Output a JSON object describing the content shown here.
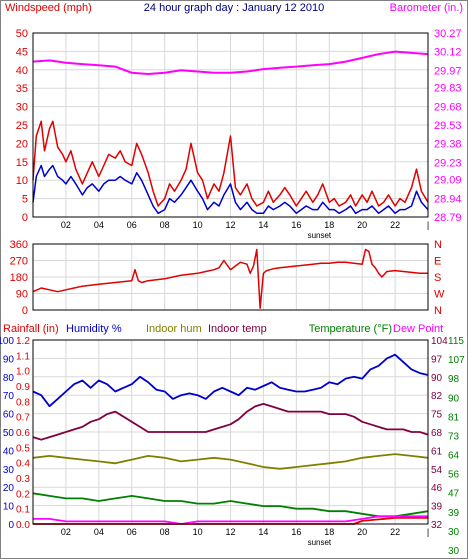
{
  "title": "24 hour graph day : January 12 2010",
  "colors": {
    "background": "#ffffff",
    "grid": "#d8d8d8",
    "text": "#000000",
    "wind_gust": "#e00000",
    "wind_avg": "#0000cc",
    "barometer": "#ff00ff",
    "direction": "#e00000",
    "rainfall": "#e00000",
    "humidity": "#0000cc",
    "indoor_hum": "#808000",
    "indoor_temp": "#800040",
    "temperature": "#008000",
    "dew_point": "#ff00ff",
    "title": "#000080"
  },
  "chart_data": [
    {
      "type": "line",
      "name": "wind-barometer",
      "left_label": "Windspeed (mph)",
      "right_label": "Barometer (in.)",
      "x_ticks": [
        "02",
        "04",
        "06",
        "08",
        "10",
        "12",
        "14",
        "16",
        "18",
        "20",
        "22"
      ],
      "x_end_tick": "|",
      "x_note": "sunset",
      "y_left_ticks": [
        "0",
        "5",
        "10",
        "15",
        "20",
        "25",
        "30",
        "35",
        "40",
        "45",
        "50"
      ],
      "y_left_range": [
        0,
        50
      ],
      "y_right_ticks": [
        "28.79",
        "28.94",
        "29.09",
        "29.23",
        "29.38",
        "29.53",
        "29.68",
        "29.83",
        "29.97",
        "30.12",
        "30.27"
      ],
      "y_right_range": [
        28.79,
        30.27
      ],
      "x_range": [
        0,
        24
      ],
      "series": [
        {
          "key": "barometer",
          "axis": "right",
          "color_key": "barometer",
          "x": [
            0,
            1,
            2,
            3,
            4,
            5,
            6,
            7,
            8,
            9,
            10,
            11,
            12,
            13,
            14,
            15,
            16,
            17,
            18,
            19,
            20,
            21,
            22,
            23,
            24
          ],
          "y": [
            30.04,
            30.05,
            30.03,
            30.02,
            30.01,
            30.0,
            29.95,
            29.94,
            29.95,
            29.97,
            29.96,
            29.95,
            29.95,
            29.96,
            29.98,
            29.99,
            30.0,
            30.01,
            30.02,
            30.04,
            30.07,
            30.1,
            30.12,
            30.11,
            30.1
          ]
        },
        {
          "key": "gust",
          "axis": "left",
          "color_key": "wind_gust",
          "x": [
            0,
            0.2,
            0.5,
            0.7,
            1,
            1.2,
            1.5,
            1.8,
            2,
            2.3,
            2.6,
            3,
            3.3,
            3.6,
            4,
            4.3,
            4.6,
            5,
            5.3,
            5.6,
            6,
            6.3,
            6.6,
            7,
            7.3,
            7.6,
            8,
            8.3,
            8.6,
            9,
            9.3,
            9.6,
            10,
            10.3,
            10.6,
            11,
            11.3,
            11.6,
            12,
            12.3,
            12.6,
            13,
            13.3,
            13.6,
            14,
            14.3,
            14.6,
            15,
            15.3,
            15.6,
            16,
            16.3,
            16.6,
            17,
            17.3,
            17.6,
            18,
            18.3,
            18.6,
            19,
            19.3,
            19.6,
            20,
            20.3,
            20.6,
            21,
            21.3,
            21.6,
            22,
            22.3,
            22.6,
            23,
            23.3,
            23.6,
            24
          ],
          "y": [
            10,
            22,
            26,
            18,
            24,
            26,
            19,
            17,
            15,
            18,
            13,
            9,
            12,
            15,
            11,
            14,
            17,
            16,
            18,
            15,
            14,
            20,
            17,
            12,
            7,
            3,
            5,
            9,
            7,
            10,
            13,
            20,
            12,
            10,
            5,
            9,
            7,
            12,
            22,
            8,
            6,
            9,
            5,
            3,
            4,
            7,
            4,
            6,
            8,
            6,
            3,
            5,
            7,
            4,
            6,
            9,
            4,
            5,
            3,
            4,
            6,
            3,
            6,
            4,
            7,
            3,
            4,
            6,
            3,
            5,
            4,
            8,
            13,
            7,
            4
          ]
        },
        {
          "key": "avg",
          "axis": "left",
          "color_key": "wind_avg",
          "x": [
            0,
            0.2,
            0.5,
            0.7,
            1,
            1.2,
            1.5,
            1.8,
            2,
            2.3,
            2.6,
            3,
            3.3,
            3.6,
            4,
            4.3,
            4.6,
            5,
            5.3,
            5.6,
            6,
            6.3,
            6.6,
            7,
            7.3,
            7.6,
            8,
            8.3,
            8.6,
            9,
            9.3,
            9.6,
            10,
            10.3,
            10.6,
            11,
            11.3,
            11.6,
            12,
            12.3,
            12.6,
            13,
            13.3,
            13.6,
            14,
            14.3,
            14.6,
            15,
            15.3,
            15.6,
            16,
            16.3,
            16.6,
            17,
            17.3,
            17.6,
            18,
            18.3,
            18.6,
            19,
            19.3,
            19.6,
            20,
            20.3,
            20.6,
            21,
            21.3,
            21.6,
            22,
            22.3,
            22.6,
            23,
            23.3,
            23.6,
            24
          ],
          "y": [
            4,
            11,
            14,
            11,
            13,
            14,
            11,
            10,
            9,
            11,
            9,
            6,
            8,
            9,
            7,
            9,
            10,
            10,
            11,
            10,
            9,
            12,
            10,
            6,
            3,
            1,
            2,
            5,
            4,
            6,
            8,
            10,
            7,
            5,
            2,
            4,
            3,
            6,
            9,
            4,
            2,
            4,
            2,
            1,
            1,
            3,
            2,
            3,
            4,
            3,
            1,
            2,
            3,
            2,
            2,
            4,
            2,
            2,
            1,
            2,
            3,
            1,
            2,
            2,
            3,
            1,
            2,
            3,
            1,
            2,
            2,
            3,
            7,
            4,
            2
          ]
        }
      ]
    },
    {
      "type": "line",
      "name": "wind-direction",
      "y_left_ticks": [
        "0",
        "90",
        "180",
        "270",
        "360"
      ],
      "y_left_range": [
        0,
        360
      ],
      "y_right_ticks": [
        "N",
        "W",
        "S",
        "E",
        "N"
      ],
      "x_range": [
        0,
        24
      ],
      "series": [
        {
          "key": "direction",
          "axis": "left",
          "color_key": "direction",
          "x": [
            0,
            0.5,
            1,
            1.5,
            2,
            2.5,
            3,
            3.5,
            4,
            4.5,
            5,
            5.5,
            6,
            6.2,
            6.4,
            6.6,
            6.8,
            7,
            7.5,
            8,
            8.5,
            9,
            9.5,
            10,
            10.5,
            11,
            11.3,
            11.6,
            12,
            12.3,
            12.6,
            13,
            13.2,
            13.4,
            13.6,
            13.8,
            14,
            14.2,
            14.4,
            14.6,
            15,
            15.5,
            16,
            16.5,
            17,
            17.5,
            18,
            18.5,
            19,
            19.5,
            20,
            20.2,
            20.4,
            20.6,
            20.8,
            21,
            21.2,
            21.5,
            22,
            22.5,
            23,
            23.5,
            24
          ],
          "y": [
            100,
            120,
            110,
            100,
            110,
            120,
            130,
            135,
            140,
            145,
            150,
            155,
            160,
            220,
            160,
            150,
            155,
            160,
            165,
            170,
            180,
            190,
            195,
            200,
            210,
            220,
            230,
            270,
            220,
            240,
            260,
            250,
            200,
            240,
            330,
            10,
            200,
            215,
            220,
            225,
            230,
            235,
            240,
            245,
            250,
            255,
            255,
            260,
            260,
            255,
            250,
            330,
            320,
            250,
            230,
            200,
            180,
            210,
            215,
            210,
            205,
            200,
            200
          ]
        }
      ]
    },
    {
      "type": "line",
      "name": "rain-humidity-temperature",
      "left_labels": [
        "Rainfall (in)",
        "Humidity %",
        "Indoor hum",
        "Indoor temp"
      ],
      "right_labels": [
        "Temperature (°F)",
        "Dew Point"
      ],
      "x_ticks": [
        "02",
        "04",
        "06",
        "08",
        "10",
        "12",
        "14",
        "16",
        "18",
        "20",
        "22"
      ],
      "x_end_tick": "|",
      "x_note": "sunset",
      "y_rain_ticks": [
        "0.0",
        "0.1",
        "0.2",
        "0.3",
        "0.4",
        "0.5",
        "0.6",
        "0.7",
        "0.8",
        "0.9",
        "1.0",
        "1.1",
        "1.2"
      ],
      "y_rain_range": [
        0,
        1.2
      ],
      "y_hum_ticks": [
        "0",
        "10",
        "20",
        "30",
        "40",
        "50",
        "60",
        "70",
        "80",
        "90",
        "100"
      ],
      "y_hum_range": [
        0,
        100
      ],
      "y_temp_ticks_inner": [
        "32",
        "39",
        "46",
        "54",
        "61",
        "68",
        "75",
        "82",
        "90",
        "97",
        "104"
      ],
      "y_temp_ticks_outer": [
        "30",
        "30",
        "39",
        "47",
        "56",
        "64",
        "73",
        "81",
        "90",
        "98",
        "107",
        "115"
      ],
      "y_temp_range": [
        32,
        104
      ],
      "x_range": [
        0,
        24
      ],
      "series": [
        {
          "key": "rainfall",
          "axis": "rain",
          "color_key": "rainfall",
          "x": [
            0,
            2,
            4,
            6,
            8,
            10,
            12,
            14,
            16,
            18,
            19.5,
            20,
            21,
            22,
            23,
            24
          ],
          "y": [
            0.0,
            0.0,
            0.0,
            0.0,
            0.0,
            0.0,
            0.0,
            0.0,
            0.0,
            0.0,
            0.0,
            0.02,
            0.03,
            0.04,
            0.04,
            0.04
          ]
        },
        {
          "key": "humidity",
          "axis": "hum",
          "color_key": "humidity",
          "x": [
            0,
            0.5,
            1,
            1.5,
            2,
            2.5,
            3,
            3.5,
            4,
            4.5,
            5,
            5.5,
            6,
            6.5,
            7,
            7.5,
            8,
            8.5,
            9,
            9.5,
            10,
            10.5,
            11,
            11.5,
            12,
            12.5,
            13,
            13.5,
            14,
            14.5,
            15,
            15.5,
            16,
            16.5,
            17,
            17.5,
            18,
            18.5,
            19,
            19.5,
            20,
            20.5,
            21,
            21.5,
            22,
            22.5,
            23,
            23.5,
            24
          ],
          "y": [
            72,
            70,
            64,
            68,
            72,
            76,
            78,
            74,
            78,
            76,
            72,
            74,
            76,
            80,
            77,
            73,
            72,
            68,
            70,
            71,
            70,
            68,
            72,
            74,
            72,
            70,
            74,
            73,
            75,
            77,
            74,
            73,
            72,
            72,
            73,
            74,
            77,
            76,
            79,
            80,
            79,
            84,
            86,
            90,
            92,
            88,
            84,
            82,
            81
          ]
        },
        {
          "key": "indoor_hum",
          "axis": "hum",
          "color_key": "indoor_hum",
          "x": [
            0,
            1,
            2,
            3,
            4,
            5,
            6,
            7,
            8,
            9,
            10,
            11,
            12,
            13,
            14,
            15,
            16,
            17,
            18,
            19,
            20,
            21,
            22,
            23,
            24
          ],
          "y": [
            36,
            37,
            36,
            35,
            34,
            33,
            35,
            37,
            36,
            34,
            35,
            36,
            35,
            33,
            31,
            30,
            31,
            32,
            33,
            34,
            36,
            37,
            38,
            37,
            36
          ]
        },
        {
          "key": "indoor_temp",
          "axis": "temp",
          "color_key": "indoor_temp",
          "x": [
            0,
            0.5,
            1,
            1.5,
            2,
            2.5,
            3,
            3.5,
            4,
            4.5,
            5,
            5.5,
            6,
            6.5,
            7,
            7.5,
            8,
            8.5,
            9,
            9.5,
            10,
            10.5,
            11,
            11.5,
            12,
            12.5,
            13,
            13.5,
            14,
            14.5,
            15,
            15.5,
            16,
            16.5,
            17,
            17.5,
            18,
            18.5,
            19,
            19.5,
            20,
            20.5,
            21,
            21.5,
            22,
            22.5,
            23,
            23.5,
            24
          ],
          "y": [
            66,
            65,
            66,
            67,
            68,
            69,
            70,
            72,
            73,
            75,
            76,
            74,
            72,
            70,
            68,
            68,
            68,
            68,
            68,
            68,
            68,
            68,
            69,
            70,
            71,
            73,
            76,
            78,
            79,
            78,
            77,
            76,
            76,
            76,
            76,
            76,
            75,
            75,
            75,
            74,
            72,
            71,
            70,
            69,
            69,
            69,
            68,
            68,
            67
          ]
        },
        {
          "key": "temperature",
          "axis": "temp",
          "color_key": "temperature",
          "x": [
            0,
            1,
            2,
            3,
            4,
            5,
            6,
            7,
            8,
            9,
            10,
            11,
            12,
            13,
            14,
            15,
            16,
            17,
            18,
            19,
            20,
            21,
            22,
            23,
            24
          ],
          "y": [
            44,
            43,
            42,
            42,
            41,
            42,
            43,
            42,
            41,
            41,
            40,
            40,
            41,
            40,
            39,
            39,
            38,
            38,
            37,
            37,
            36,
            35,
            35,
            36,
            37
          ]
        },
        {
          "key": "dew_point",
          "axis": "temp",
          "color_key": "dew_point",
          "x": [
            0,
            1,
            2,
            3,
            4,
            5,
            6,
            7,
            8,
            9,
            10,
            11,
            12,
            13,
            14,
            15,
            16,
            17,
            18,
            19,
            20,
            21,
            22,
            23,
            24
          ],
          "y": [
            34,
            34,
            33,
            33,
            33,
            33,
            33,
            33,
            33,
            32,
            33,
            33,
            33,
            33,
            33,
            33,
            33,
            33,
            33,
            33,
            34,
            35,
            35,
            35,
            35
          ]
        }
      ]
    }
  ]
}
